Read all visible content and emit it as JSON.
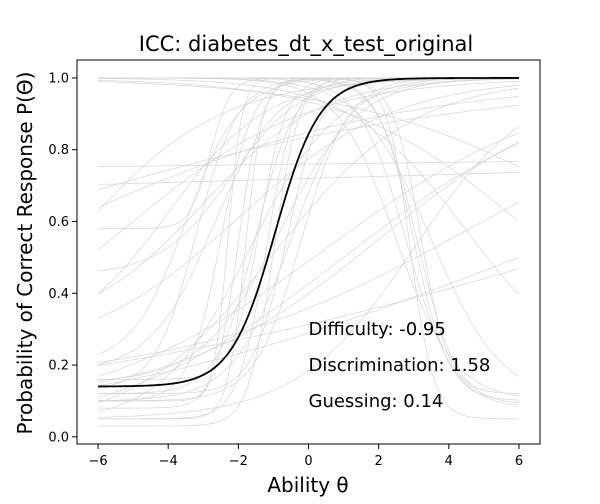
{
  "chart_data": {
    "type": "line",
    "title": "ICC: diabetes_dt_x_test_original",
    "xlabel": "Ability θ",
    "ylabel": "Probability of Correct Response P(Θ)",
    "xlim": [
      -6.6,
      6.6
    ],
    "ylim": [
      -0.02,
      1.05
    ],
    "xticks": [
      -6,
      -4,
      -2,
      0,
      2,
      4,
      6
    ],
    "xtick_labels": [
      "−6",
      "−4",
      "−2",
      "0",
      "2",
      "4",
      "6"
    ],
    "yticks": [
      0.0,
      0.2,
      0.4,
      0.6,
      0.8,
      1.0
    ],
    "ytick_labels": [
      "0.0",
      "0.2",
      "0.4",
      "0.6",
      "0.8",
      "1.0"
    ],
    "grid": false,
    "highlighted_item": {
      "difficulty": -0.95,
      "discrimination": 1.58,
      "guessing": 0.14,
      "color": "#000000"
    },
    "background_items": {
      "color": "#d3d3d3",
      "params": [
        {
          "a": 1.2,
          "b": -0.5,
          "c": 0.1
        },
        {
          "a": 2.5,
          "b": -1.2,
          "c": 0.05
        },
        {
          "a": 0.6,
          "b": -3.0,
          "c": 0.3
        },
        {
          "a": 0.4,
          "b": -5.0,
          "c": 0.2
        },
        {
          "a": 3.0,
          "b": -2.0,
          "c": 0.08
        },
        {
          "a": 1.8,
          "b": -1.5,
          "c": 0.12
        },
        {
          "a": 0.9,
          "b": -0.8,
          "c": 0.15
        },
        {
          "a": 2.2,
          "b": -2.5,
          "c": 0.1
        },
        {
          "a": 4.0,
          "b": -1.8,
          "c": 0.05
        },
        {
          "a": 1.0,
          "b": -2.2,
          "c": 0.45
        },
        {
          "a": 0.7,
          "b": -4.0,
          "c": 0.25
        },
        {
          "a": 1.5,
          "b": -0.2,
          "c": 0.1
        },
        {
          "a": 2.8,
          "b": -1.0,
          "c": 0.03
        },
        {
          "a": 0.5,
          "b": -1.0,
          "c": 0.02
        },
        {
          "a": 0.3,
          "b": 0.5,
          "c": 0.05
        },
        {
          "a": 0.35,
          "b": 2.0,
          "c": 0.1
        },
        {
          "a": 0.25,
          "b": 4.5,
          "c": 0.15
        },
        {
          "a": 3.5,
          "b": -2.8,
          "c": 0.58
        },
        {
          "a": 1.3,
          "b": -3.5,
          "c": 0.2
        },
        {
          "a": 2.0,
          "b": -0.6,
          "c": 0.12
        },
        {
          "a": 5.0,
          "b": -2.3,
          "c": 0.1
        },
        {
          "a": 0.8,
          "b": -1.7,
          "c": 0.04
        },
        {
          "a": 1.1,
          "b": -2.7,
          "c": 0.18
        },
        {
          "a": 0.45,
          "b": -2.0,
          "c": 0.22
        },
        {
          "a": 0.2,
          "b": -8.0,
          "c": 0.1
        },
        {
          "a": 0.15,
          "b": -9.0,
          "c": 0.2
        },
        {
          "a": 0.3,
          "b": 1.0,
          "c": 0.0
        },
        {
          "a": 2.6,
          "b": -1.4,
          "c": 0.16
        },
        {
          "a": 1.7,
          "b": -3.2,
          "c": 0.13
        },
        {
          "a": 0.6,
          "b": 3.0,
          "c": 0.05
        },
        {
          "a": -2.0,
          "b": 3.0,
          "c": 0.1
        },
        {
          "a": -1.5,
          "b": 2.8,
          "c": 0.08
        },
        {
          "a": -2.5,
          "b": 3.2,
          "c": 0.12
        },
        {
          "a": -1.0,
          "b": 3.5,
          "c": 0.1
        },
        {
          "a": -0.6,
          "b": 4.5,
          "c": 0.15
        },
        {
          "a": -3.0,
          "b": 2.9,
          "c": 0.05
        },
        {
          "a": -1.2,
          "b": 2.5,
          "c": 0.1
        },
        {
          "a": -0.4,
          "b": 6.0,
          "c": 0.2
        },
        {
          "a": -0.3,
          "b": 8.0,
          "c": 0.3
        },
        {
          "a": -1.8,
          "b": 3.1,
          "c": 0.09
        },
        {
          "a": 0.01,
          "b": 0.0,
          "c": 0.52
        },
        {
          "a": 0.02,
          "b": 0.0,
          "c": 0.44
        },
        {
          "a": 0.15,
          "b": 6.0,
          "c": 0.0
        },
        {
          "a": 0.12,
          "b": 8.0,
          "c": 0.05
        },
        {
          "a": 0.5,
          "b": -6.5,
          "c": 0.15
        }
      ]
    }
  },
  "annotations": [
    {
      "key": "difficulty",
      "text": "Difficulty: -0.95",
      "x": 0.0,
      "y": 0.3
    },
    {
      "key": "discrimination",
      "text": "Discrimination: 1.58",
      "x": 0.0,
      "y": 0.2
    },
    {
      "key": "guessing",
      "text": "Guessing: 0.14",
      "x": 0.0,
      "y": 0.1
    }
  ]
}
